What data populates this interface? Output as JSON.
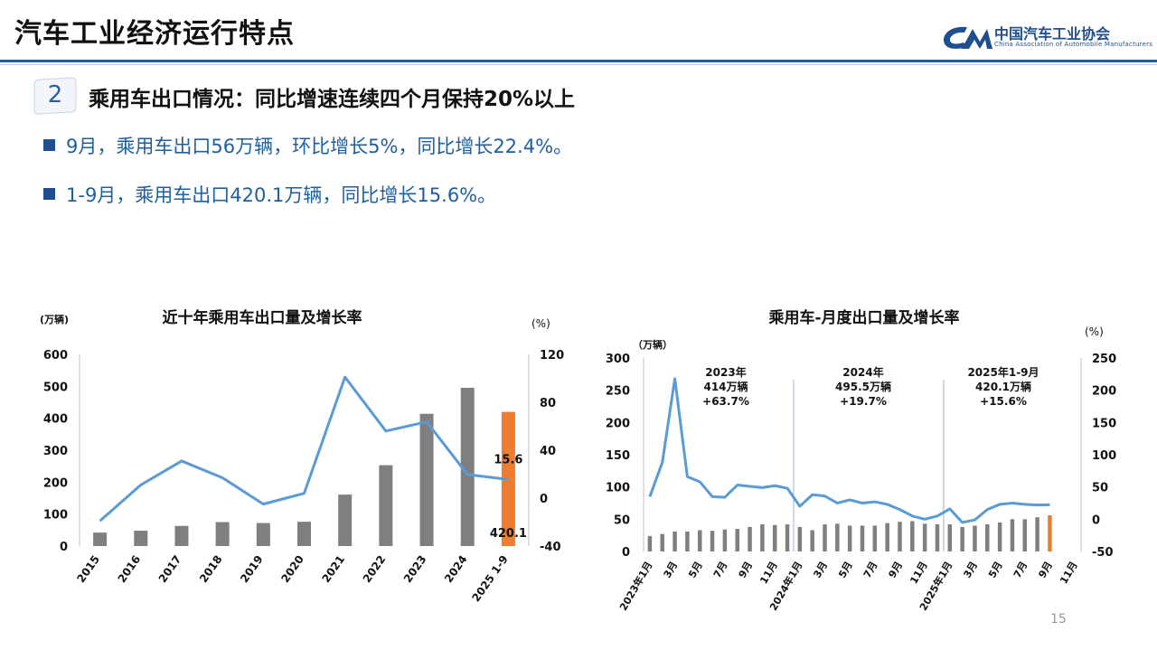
{
  "header": {
    "title": "汽车工业经济运行特点",
    "logo_cn": "中国汽车工业协会",
    "logo_en": "China Association of Automobile Manufacturers"
  },
  "section": {
    "number": "2",
    "heading": "乘用车出口情况：同比增速连续四个月保持20%以上"
  },
  "bullets": [
    "9月，乘用车出口56万辆，环比增长5%，同比增长22.4%。",
    "1-9月，乘用车出口420.1万辆，同比增长15.6%。"
  ],
  "page_number": "15",
  "colors": {
    "accent": "#1f5f9e",
    "bar_gray": "#7f7f7f",
    "bar_highlight": "#ed7d31",
    "line_blue": "#5b9bd5"
  },
  "chart_data": [
    {
      "type": "bar",
      "title": "近十年乘用车出口量及增长率",
      "y_unit_left": "(万辆)",
      "y_unit_right": "(%)",
      "categories": [
        "2015",
        "2016",
        "2017",
        "2018",
        "2019",
        "2020",
        "2021",
        "2022",
        "2023",
        "2024",
        "2025 1-9"
      ],
      "series": [
        {
          "type": "bar",
          "axis": "left",
          "values": [
            42,
            48,
            63,
            75,
            72,
            76,
            161,
            253,
            414,
            495.5,
            420.1
          ]
        },
        {
          "type": "line",
          "axis": "right",
          "values": [
            -19,
            11,
            31,
            17,
            -5,
            4,
            101,
            56,
            63.7,
            19.7,
            15.6
          ]
        }
      ],
      "ylim_left": [
        0,
        600
      ],
      "yticks_left": [
        0,
        100,
        200,
        300,
        400,
        500,
        600
      ],
      "ylim_right": [
        -40,
        120
      ],
      "yticks_right": [
        -40,
        0,
        40,
        80,
        120
      ],
      "data_labels": [
        {
          "text": "15.6"
        },
        {
          "text": "420.1"
        }
      ]
    },
    {
      "type": "bar",
      "title": "乘用车-月度出口量及增长率",
      "y_unit_left": "（万辆）",
      "y_unit_right": "(%)",
      "x_tick_labels": [
        "2023年1月",
        "3月",
        "5月",
        "7月",
        "9月",
        "11月",
        "2024年1月",
        "3月",
        "5月",
        "7月",
        "9月",
        "11月",
        "2025年1月",
        "3月",
        "5月",
        "7月",
        "9月",
        "11月"
      ],
      "series": [
        {
          "type": "bar",
          "axis": "left",
          "values": [
            24,
            27,
            31,
            31,
            33,
            32,
            34,
            35,
            38,
            42,
            41,
            42,
            38,
            33,
            42,
            43,
            40,
            40,
            40,
            44,
            46,
            47,
            43,
            42,
            42,
            38,
            40,
            42,
            45,
            50,
            50,
            53,
            56
          ]
        },
        {
          "type": "line",
          "axis": "right",
          "values": [
            35,
            88,
            218,
            66,
            58,
            35,
            34,
            53,
            51,
            49,
            52,
            48,
            20,
            38,
            36,
            25,
            30,
            25,
            27,
            23,
            15,
            5,
            0,
            5,
            16,
            -5,
            -1,
            15,
            23,
            25,
            23,
            22,
            22.4
          ]
        }
      ],
      "ylim_left": [
        0,
        300
      ],
      "yticks_left": [
        0,
        50,
        100,
        150,
        200,
        250,
        300
      ],
      "ylim_right": [
        -50,
        250
      ],
      "yticks_right": [
        -50,
        0,
        50,
        100,
        150,
        200,
        250
      ],
      "annotations": [
        {
          "lines": [
            "2023年",
            "414万辆",
            "+63.7%"
          ]
        },
        {
          "lines": [
            "2024年",
            "495.5万辆",
            "+19.7%"
          ]
        },
        {
          "lines": [
            "2025年1-9月",
            "420.1万辆",
            "+15.6%"
          ]
        }
      ]
    }
  ]
}
